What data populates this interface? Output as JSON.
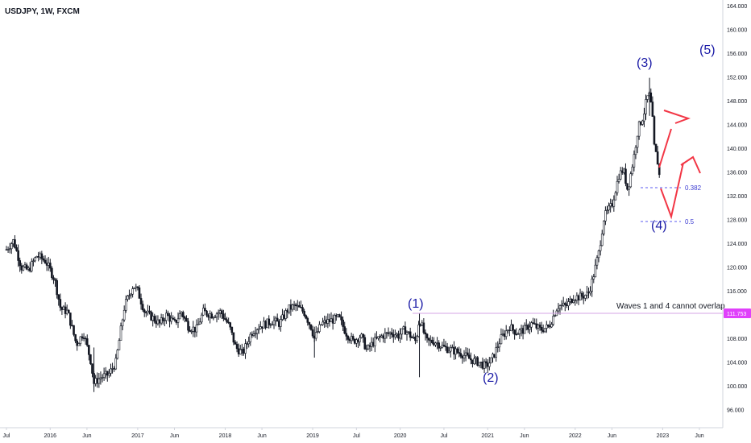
{
  "header": {
    "title": "USDJPY, 1W, FXCM"
  },
  "colors": {
    "candle": "#131722",
    "wave_label": "#1a1aa6",
    "fib_line": "#5a5af0",
    "arrow": "#f23645",
    "overlap_line": "#d4a6e6",
    "price_tag": "#e040fb",
    "grid": "#e0e3eb"
  },
  "chart_data": {
    "type": "candlestick",
    "title": "USDJPY, 1W, FXCM",
    "xlabel": "",
    "ylabel": "",
    "ylim": [
      93.0,
      165.0
    ],
    "y_ticks": [
      "164.000",
      "160.000",
      "156.000",
      "152.000",
      "148.000",
      "144.000",
      "140.000",
      "136.000",
      "132.000",
      "128.000",
      "124.000",
      "120.000",
      "116.000",
      "112.000",
      "108.000",
      "104.000",
      "100.000",
      "96.000"
    ],
    "x_ticks": [
      "Jul",
      "2016",
      "Jun",
      "2017",
      "Jun",
      "2018",
      "Jun",
      "2019",
      "Jul",
      "2020",
      "Jul",
      "2021",
      "Jun",
      "2022",
      "Jun",
      "2023",
      "Jun"
    ],
    "x_tick_dates": [
      2015.5,
      2016.0,
      2016.42,
      2017.0,
      2017.42,
      2018.0,
      2018.42,
      2019.0,
      2019.5,
      2020.0,
      2020.5,
      2021.0,
      2021.42,
      2022.0,
      2022.42,
      2023.0,
      2023.42
    ],
    "last_price": "111.753",
    "price_path": [
      [
        2015.5,
        123.0
      ],
      [
        2015.58,
        124.5
      ],
      [
        2015.67,
        120.0
      ],
      [
        2015.75,
        119.5
      ],
      [
        2015.85,
        122.0
      ],
      [
        2015.95,
        121.0
      ],
      [
        2016.05,
        118.0
      ],
      [
        2016.12,
        113.0
      ],
      [
        2016.2,
        112.5
      ],
      [
        2016.3,
        107.0
      ],
      [
        2016.38,
        109.0
      ],
      [
        2016.46,
        104.5
      ],
      [
        2016.5,
        100.5
      ],
      [
        2016.58,
        101.5
      ],
      [
        2016.67,
        102.0
      ],
      [
        2016.75,
        104.0
      ],
      [
        2016.85,
        113.5
      ],
      [
        2016.95,
        117.0
      ],
      [
        2017.0,
        116.0
      ],
      [
        2017.08,
        112.5
      ],
      [
        2017.17,
        111.5
      ],
      [
        2017.25,
        110.5
      ],
      [
        2017.33,
        112.0
      ],
      [
        2017.42,
        110.5
      ],
      [
        2017.5,
        112.5
      ],
      [
        2017.58,
        110.0
      ],
      [
        2017.67,
        109.5
      ],
      [
        2017.75,
        112.5
      ],
      [
        2017.85,
        112.0
      ],
      [
        2017.95,
        112.5
      ],
      [
        2018.05,
        110.0
      ],
      [
        2018.12,
        106.5
      ],
      [
        2018.2,
        105.5
      ],
      [
        2018.3,
        109.0
      ],
      [
        2018.38,
        110.0
      ],
      [
        2018.46,
        110.5
      ],
      [
        2018.55,
        111.0
      ],
      [
        2018.62,
        110.5
      ],
      [
        2018.72,
        113.0
      ],
      [
        2018.8,
        113.5
      ],
      [
        2018.9,
        112.5
      ],
      [
        2018.98,
        110.0
      ],
      [
        2019.02,
        108.0
      ],
      [
        2019.1,
        110.5
      ],
      [
        2019.2,
        111.0
      ],
      [
        2019.3,
        111.5
      ],
      [
        2019.38,
        109.0
      ],
      [
        2019.46,
        107.5
      ],
      [
        2019.55,
        108.5
      ],
      [
        2019.62,
        106.0
      ],
      [
        2019.7,
        107.5
      ],
      [
        2019.8,
        108.5
      ],
      [
        2019.9,
        109.0
      ],
      [
        2019.98,
        108.5
      ],
      [
        2020.05,
        109.5
      ],
      [
        2020.18,
        107.5
      ],
      [
        2020.22,
        111.5
      ],
      [
        2020.3,
        107.5
      ],
      [
        2020.4,
        107.5
      ],
      [
        2020.5,
        106.5
      ],
      [
        2020.6,
        106.0
      ],
      [
        2020.7,
        105.5
      ],
      [
        2020.8,
        104.5
      ],
      [
        2020.9,
        104.0
      ],
      [
        2020.98,
        103.3
      ],
      [
        2021.05,
        104.5
      ],
      [
        2021.15,
        108.0
      ],
      [
        2021.25,
        110.0
      ],
      [
        2021.33,
        109.0
      ],
      [
        2021.42,
        109.5
      ],
      [
        2021.5,
        110.5
      ],
      [
        2021.6,
        109.5
      ],
      [
        2021.7,
        110.0
      ],
      [
        2021.8,
        113.5
      ],
      [
        2021.9,
        113.5
      ],
      [
        2021.98,
        115.0
      ],
      [
        2022.05,
        115.0
      ],
      [
        2022.15,
        115.5
      ],
      [
        2022.2,
        118.0
      ],
      [
        2022.27,
        122.5
      ],
      [
        2022.33,
        128.5
      ],
      [
        2022.42,
        130.5
      ],
      [
        2022.5,
        135.5
      ],
      [
        2022.55,
        136.5
      ],
      [
        2022.6,
        133.0
      ],
      [
        2022.67,
        138.5
      ],
      [
        2022.72,
        143.5
      ],
      [
        2022.78,
        145.5
      ],
      [
        2022.82,
        148.5
      ],
      [
        2022.85,
        149.0
      ],
      [
        2022.88,
        146.0
      ],
      [
        2022.9,
        140.5
      ],
      [
        2022.94,
        138.0
      ],
      [
        2022.97,
        134.5
      ]
    ]
  },
  "annotations": {
    "wave1": "(1)",
    "wave2": "(2)",
    "wave3": "(3)",
    "wave4": "(4)",
    "wave5": "(5)",
    "fib_382": "0.382",
    "fib_5": "0.5",
    "overlap_text": "Waves 1 and 4 cannot overlap"
  }
}
